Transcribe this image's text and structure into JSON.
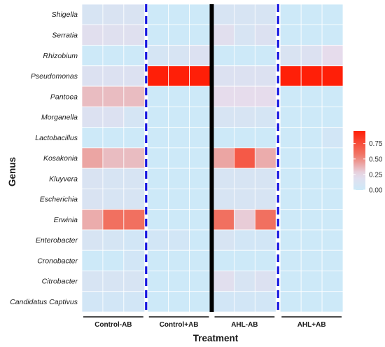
{
  "chart_data": {
    "type": "heatmap",
    "xlabel": "Treatment",
    "ylabel": "Genus",
    "groups": [
      "Control-AB",
      "Control+AB",
      "AHL-AB",
      "AHL+AB"
    ],
    "replicates_per_group": 3,
    "genera": [
      "Shigella",
      "Serratia",
      "Rhizobium",
      "Pseudomonas",
      "Pantoea",
      "Morganella",
      "Lactobacillus",
      "Kosakonia",
      "Kluyvera",
      "Escherichia",
      "Erwinia",
      "Enterobacter",
      "Cronobacter",
      "Citrobacter",
      "Candidatus Captivus"
    ],
    "values": [
      [
        0.1,
        0.12,
        0.12,
        0.0,
        0.0,
        0.0,
        0.1,
        0.1,
        0.1,
        0.0,
        0.0,
        0.0
      ],
      [
        0.2,
        0.18,
        0.18,
        0.0,
        0.0,
        0.0,
        0.2,
        0.1,
        0.15,
        0.0,
        0.0,
        0.0
      ],
      [
        0.0,
        0.0,
        0.0,
        0.08,
        0.1,
        0.15,
        0.0,
        0.0,
        0.0,
        0.12,
        0.15,
        0.25
      ],
      [
        0.15,
        0.15,
        0.15,
        0.95,
        0.95,
        0.95,
        0.15,
        0.15,
        0.15,
        0.95,
        0.95,
        0.95
      ],
      [
        0.35,
        0.35,
        0.35,
        0.0,
        0.0,
        0.0,
        0.25,
        0.25,
        0.25,
        0.0,
        0.0,
        0.0
      ],
      [
        0.15,
        0.15,
        0.08,
        0.0,
        0.0,
        0.0,
        0.1,
        0.1,
        0.08,
        0.0,
        0.0,
        0.0
      ],
      [
        0.0,
        0.0,
        0.0,
        0.0,
        0.0,
        0.0,
        0.0,
        0.0,
        0.0,
        0.0,
        0.0,
        0.05
      ],
      [
        0.42,
        0.35,
        0.35,
        0.0,
        0.0,
        0.0,
        0.42,
        0.7,
        0.4,
        0.0,
        0.0,
        0.0
      ],
      [
        0.12,
        0.1,
        0.1,
        0.0,
        0.0,
        0.0,
        0.1,
        0.1,
        0.1,
        0.0,
        0.0,
        0.0
      ],
      [
        0.12,
        0.1,
        0.1,
        0.0,
        0.0,
        0.0,
        0.1,
        0.1,
        0.1,
        0.0,
        0.0,
        0.0
      ],
      [
        0.4,
        0.6,
        0.6,
        0.0,
        0.0,
        0.0,
        0.6,
        0.3,
        0.6,
        0.0,
        0.0,
        0.0
      ],
      [
        0.1,
        0.08,
        0.05,
        0.05,
        0.05,
        0.0,
        0.1,
        0.05,
        0.05,
        0.0,
        0.0,
        0.0
      ],
      [
        0.0,
        0.0,
        0.05,
        0.0,
        0.0,
        0.0,
        0.0,
        0.0,
        0.0,
        0.0,
        0.0,
        0.0
      ],
      [
        0.1,
        0.1,
        0.1,
        0.0,
        0.0,
        0.0,
        0.2,
        0.1,
        0.15,
        0.0,
        0.0,
        0.0
      ],
      [
        0.05,
        0.05,
        0.05,
        0.0,
        0.0,
        0.0,
        0.05,
        0.05,
        0.05,
        0.0,
        0.0,
        0.0
      ]
    ],
    "color_scale": {
      "min": 0.0,
      "max": 0.95,
      "ticks": [
        "0.00",
        "0.25",
        "0.50",
        "0.75"
      ],
      "tick_values": [
        0.0,
        0.25,
        0.5,
        0.75
      ],
      "colors": [
        "#cde9f8",
        "#e6dcec",
        "#ef7b6c",
        "#ff1f08"
      ]
    },
    "legend_position": "right",
    "separators": {
      "dashed_color": "#1818e0",
      "dashed_after_groups": [
        1,
        3
      ],
      "solid_color": "#000000",
      "solid_after_groups": [
        2
      ]
    }
  }
}
